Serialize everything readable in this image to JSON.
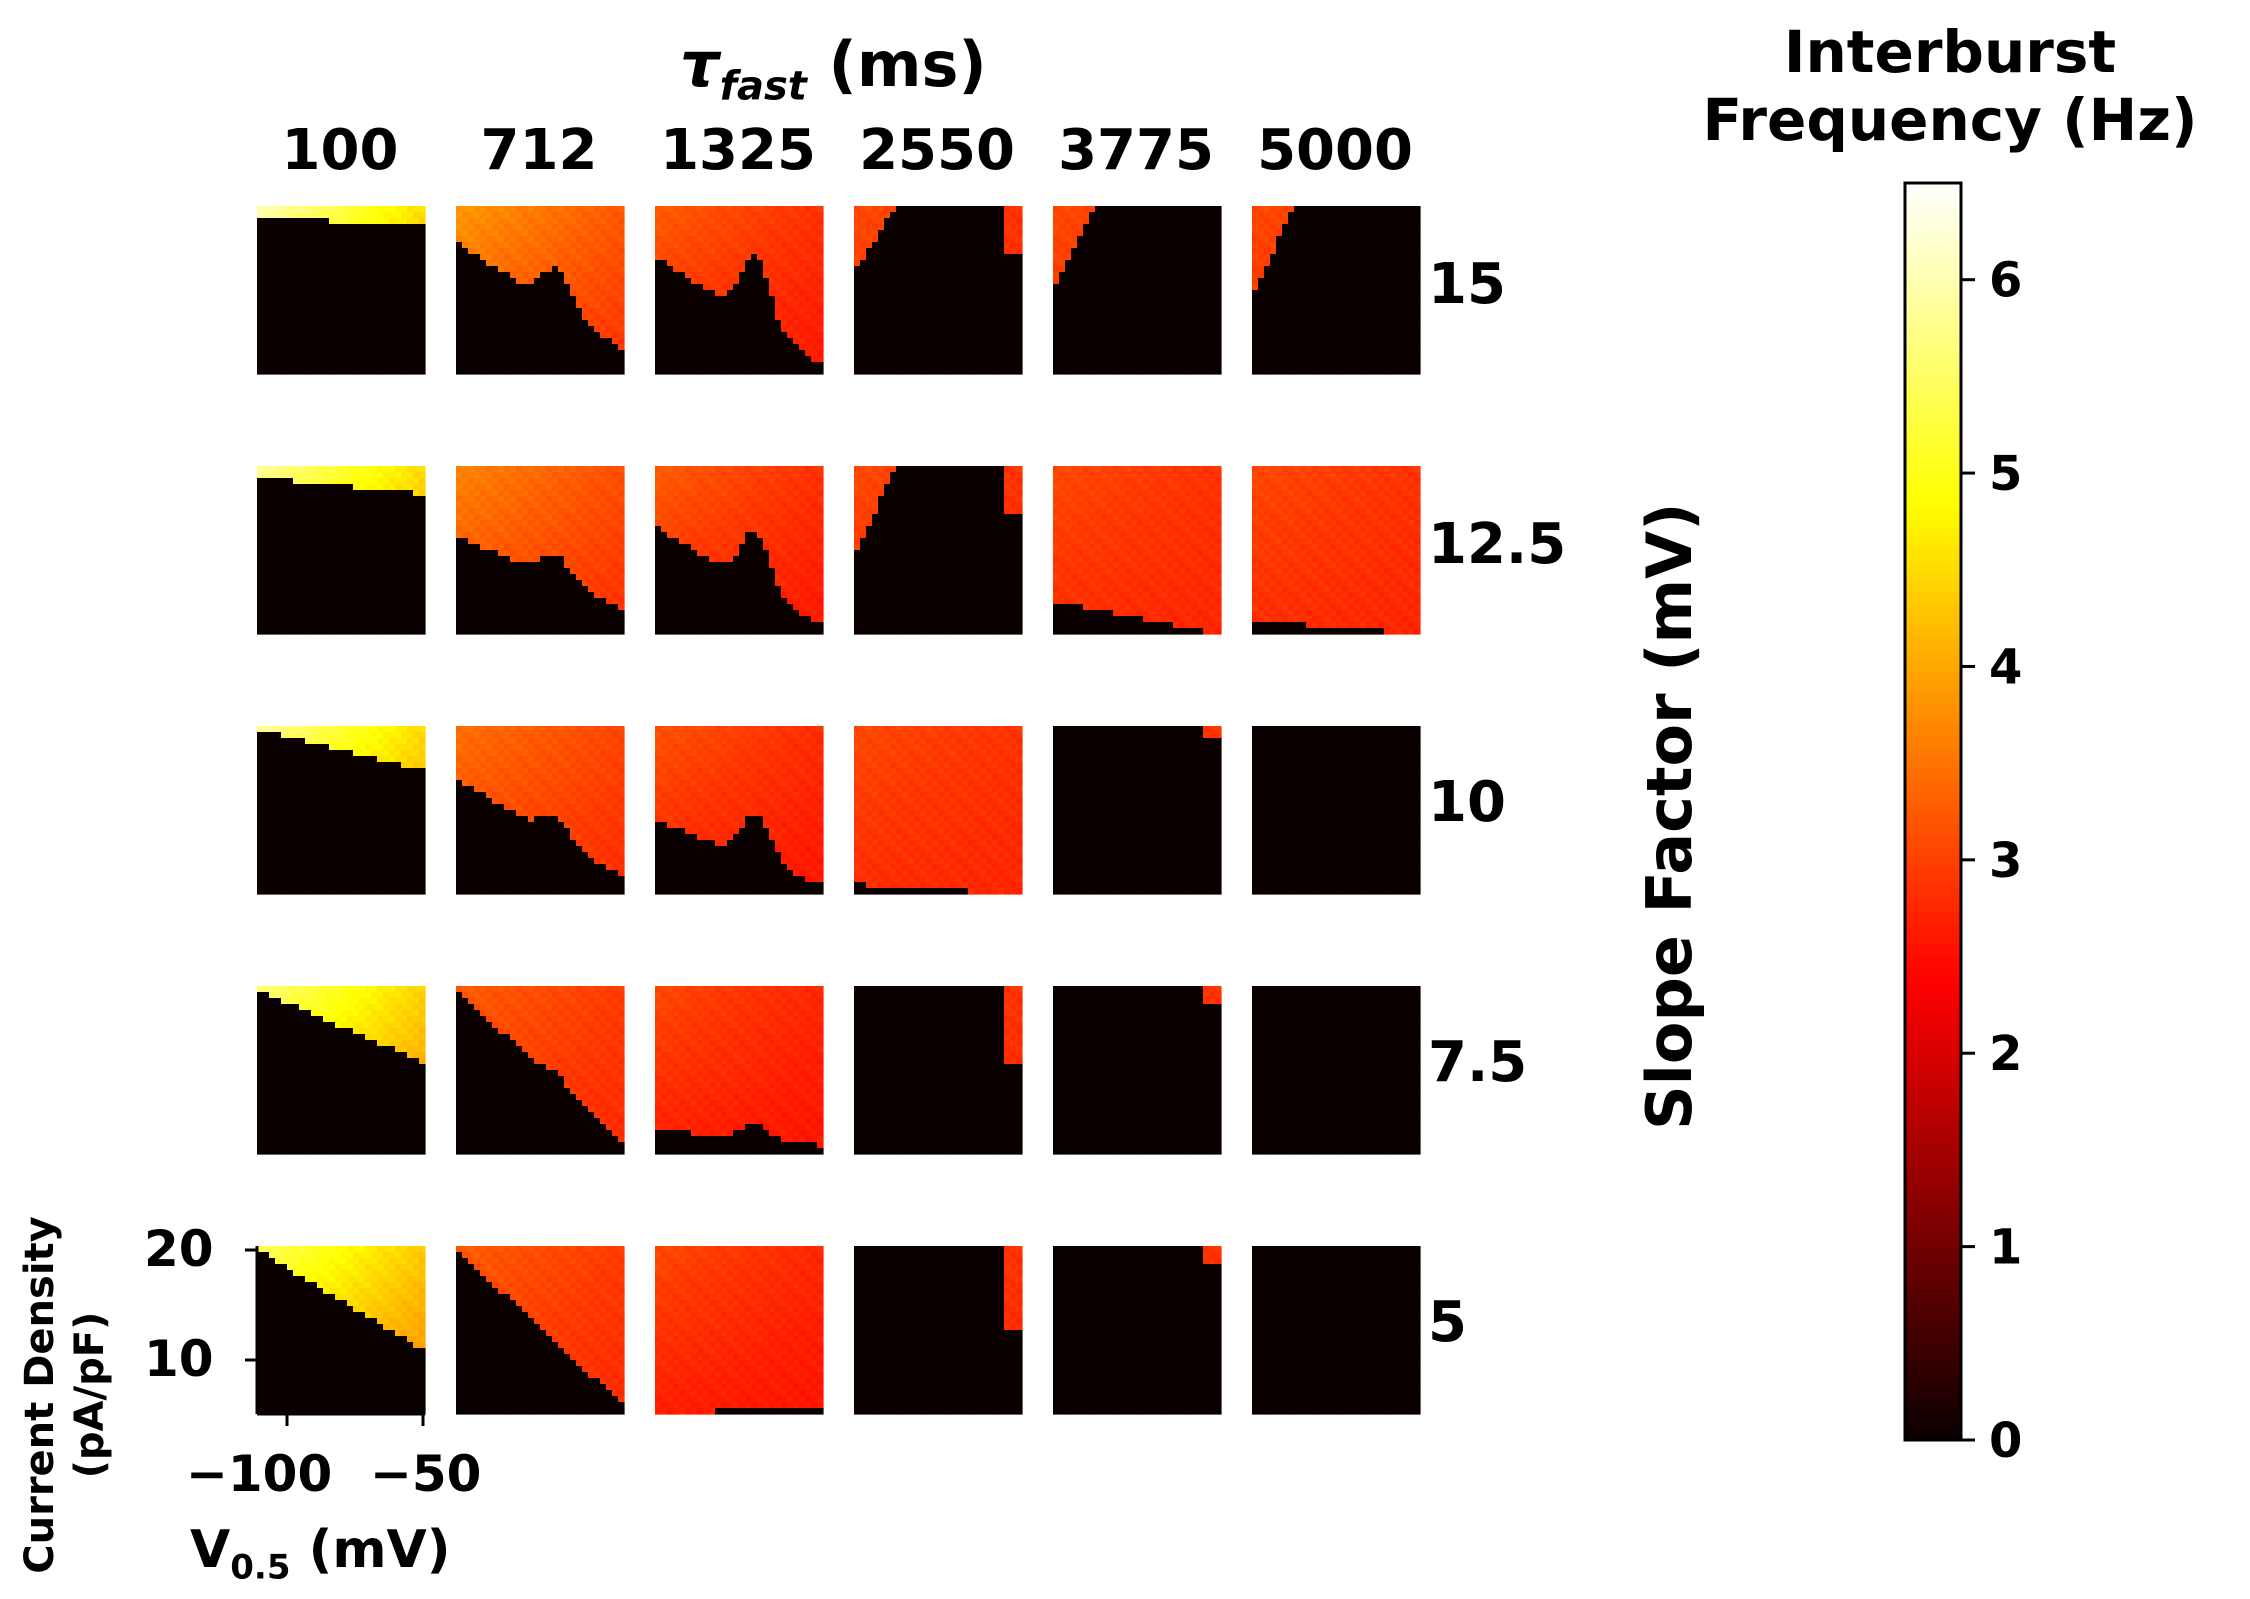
{
  "title": {
    "symbol": "τ",
    "subscript": "fast",
    "unit": "(ms)"
  },
  "colorbar": {
    "title_line1": "Interburst",
    "title_line2": "Frequency (Hz)",
    "ticks": [
      "0",
      "1",
      "2",
      "3",
      "4",
      "5",
      "6"
    ],
    "range": [
      0,
      6.5
    ],
    "colormap": "hot"
  },
  "right_axis_label": "Slope Factor (mV)",
  "axes": {
    "x_label": "V",
    "x_label_sub": "0.5",
    "x_label_unit": "(mV)",
    "x_ticks": [
      "−100",
      "−50"
    ],
    "y_label_line1": "Current Density",
    "y_label_line2": "(pA/pF)",
    "y_ticks": [
      "20",
      "10"
    ]
  },
  "chart_data": {
    "type": "heatmap",
    "columns_label": "τfast (ms)",
    "columns": [
      "100",
      "712",
      "1325",
      "2550",
      "3775",
      "5000"
    ],
    "rows_label": "Slope Factor (mV)",
    "rows": [
      "15",
      "12.5",
      "10",
      "7.5",
      "5"
    ],
    "x_range_mV": [
      -110,
      -50
    ],
    "y_range_pApF": [
      5,
      20
    ],
    "color_range_Hz": [
      0,
      6.5
    ],
    "panels": {
      "15": [
        {
          "high": 6.0,
          "low": 3.2,
          "dark_start": 0.95,
          "dark_end": 0.9,
          "bump": 0,
          "right_tail": 0
        },
        {
          "high": 3.8,
          "low": 2.6,
          "dark_start": 0.8,
          "dark_end": 0.15,
          "bump": 0.38,
          "right_tail": 0
        },
        {
          "high": 3.2,
          "low": 2.4,
          "dark_start": 0.72,
          "dark_end": 0.05,
          "bump": 0.65,
          "right_tail": 0.9
        },
        {
          "high": 3.0,
          "low": 2.6,
          "dark_start": 0.6,
          "dark_end": 0.0,
          "bump": 0,
          "right_tail": 0.3
        },
        {
          "high": 3.0,
          "low": 2.6,
          "dark_start": 0.5,
          "dark_end": 0.0,
          "bump": 0,
          "right_tail": 0
        },
        {
          "high": 3.0,
          "low": 2.6,
          "dark_start": 0.45,
          "dark_end": 0.0,
          "bump": 0,
          "right_tail": 0
        }
      ],
      "12.5": [
        {
          "high": 5.8,
          "low": 3.3,
          "dark_start": 0.95,
          "dark_end": 0.85,
          "bump": 0,
          "right_tail": 0
        },
        {
          "high": 3.6,
          "low": 2.6,
          "dark_start": 0.6,
          "dark_end": 0.15,
          "bump": 0.25,
          "right_tail": 0
        },
        {
          "high": 3.2,
          "low": 2.4,
          "dark_start": 0.65,
          "dark_end": 0.05,
          "bump": 0.55,
          "right_tail": 0.75
        },
        {
          "high": 3.0,
          "low": 2.6,
          "dark_start": 0.45,
          "dark_end": 0.0,
          "bump": 0,
          "right_tail": 0.3
        },
        {
          "high": 3.0,
          "low": 2.6,
          "dark_start": 0.2,
          "dark_end": 0.0,
          "bump": 0,
          "right_tail": 0
        },
        {
          "high": 3.0,
          "low": 2.6,
          "dark_start": 0.08,
          "dark_end": 0.0,
          "bump": 0,
          "right_tail": 0
        }
      ],
      "10": [
        {
          "high": 5.8,
          "low": 3.3,
          "dark_start": 1.0,
          "dark_end": 0.75,
          "bump": 0,
          "right_tail": 0
        },
        {
          "high": 3.4,
          "low": 2.6,
          "dark_start": 0.7,
          "dark_end": 0.1,
          "bump": 0.2,
          "right_tail": 0
        },
        {
          "high": 3.1,
          "low": 2.4,
          "dark_start": 0.45,
          "dark_end": 0.05,
          "bump": 0.45,
          "right_tail": 0.65
        },
        {
          "high": 3.0,
          "low": 2.6,
          "dark_start": 0.06,
          "dark_end": 0.0,
          "bump": 0,
          "right_tail": 0.45
        },
        {
          "high": 3.0,
          "low": 2.6,
          "dark_start": 0.0,
          "dark_end": 0.0,
          "bump": 0,
          "right_tail": 0.06
        },
        {
          "high": 3.0,
          "low": 2.6,
          "dark_start": 0.0,
          "dark_end": 0.0,
          "bump": 0,
          "right_tail": 0
        }
      ],
      "7.5": [
        {
          "high": 5.6,
          "low": 3.3,
          "dark_start": 1.0,
          "dark_end": 0.55,
          "bump": 0,
          "right_tail": 0
        },
        {
          "high": 3.2,
          "low": 2.6,
          "dark_start": 1.0,
          "dark_end": 0.05,
          "bump": 0.1,
          "right_tail": 0
        },
        {
          "high": 3.0,
          "low": 2.4,
          "dark_start": 0.15,
          "dark_end": 0.05,
          "bump": 0.15,
          "right_tail": 0.85
        },
        {
          "high": 3.0,
          "low": 2.6,
          "dark_start": 0.0,
          "dark_end": 0.0,
          "bump": 0,
          "right_tail": 0.45
        },
        {
          "high": 3.0,
          "low": 2.6,
          "dark_start": 0.0,
          "dark_end": 0.0,
          "bump": 0,
          "right_tail": 0.12
        },
        {
          "high": 3.0,
          "low": 2.6,
          "dark_start": 0.0,
          "dark_end": 0.0,
          "bump": 0,
          "right_tail": 0
        }
      ],
      "5": [
        {
          "high": 5.4,
          "low": 3.3,
          "dark_start": 1.0,
          "dark_end": 0.38,
          "bump": 0,
          "right_tail": 0
        },
        {
          "high": 3.2,
          "low": 2.6,
          "dark_start": 1.0,
          "dark_end": 0.05,
          "bump": 0,
          "right_tail": 0
        },
        {
          "high": 3.0,
          "low": 2.4,
          "dark_start": 0.0,
          "dark_end": 0.05,
          "bump": 0,
          "right_tail": 0.9
        },
        {
          "high": 3.0,
          "low": 2.6,
          "dark_start": 0.0,
          "dark_end": 0.0,
          "bump": 0,
          "right_tail": 0.5
        },
        {
          "high": 3.0,
          "low": 2.6,
          "dark_start": 0.0,
          "dark_end": 0.0,
          "bump": 0,
          "right_tail": 0.12
        },
        {
          "high": 3.0,
          "low": 2.6,
          "dark_start": 0.0,
          "dark_end": 0.0,
          "bump": 0,
          "right_tail": 0
        }
      ]
    }
  }
}
